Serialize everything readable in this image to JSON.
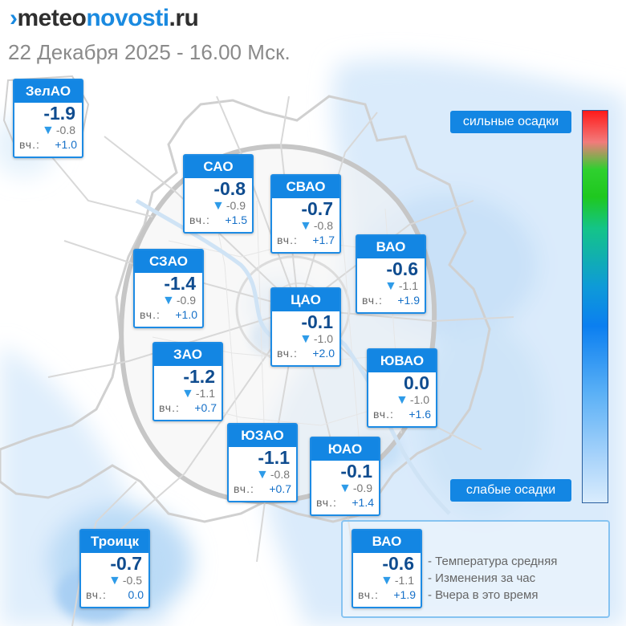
{
  "header": {
    "logo_prefix": "meteo",
    "logo_main": "novosti",
    "logo_suffix": ".ru",
    "datetime": "22 Декабря 2025 - 16.00 Мск."
  },
  "colors": {
    "brand_blue": "#1386e3",
    "temp_text": "#0f4c8f",
    "precip_light": "#cfe6fb",
    "road_gray": "#d4d4d4"
  },
  "districts": [
    {
      "name": "ЗелАО",
      "temp": "-1.9",
      "change": "-0.8",
      "yesterday_label": "вч.:",
      "yesterday": "+1.0"
    },
    {
      "name": "САО",
      "temp": "-0.8",
      "change": "-0.9",
      "yesterday_label": "вч.:",
      "yesterday": "+1.5"
    },
    {
      "name": "СВАО",
      "temp": "-0.7",
      "change": "-0.8",
      "yesterday_label": "вч.:",
      "yesterday": "+1.7"
    },
    {
      "name": "ВАО",
      "temp": "-0.6",
      "change": "-1.1",
      "yesterday_label": "вч.:",
      "yesterday": "+1.9"
    },
    {
      "name": "СЗАО",
      "temp": "-1.4",
      "change": "-0.9",
      "yesterday_label": "вч.:",
      "yesterday": "+1.0"
    },
    {
      "name": "ЦАО",
      "temp": "-0.1",
      "change": "-1.0",
      "yesterday_label": "вч.:",
      "yesterday": "+2.0"
    },
    {
      "name": "ЗАО",
      "temp": "-1.2",
      "change": "-1.1",
      "yesterday_label": "вч.:",
      "yesterday": "+0.7"
    },
    {
      "name": "ЮВАО",
      "temp": "0.0",
      "change": "-1.0",
      "yesterday_label": "вч.:",
      "yesterday": "+1.6"
    },
    {
      "name": "ЮЗАО",
      "temp": "-1.1",
      "change": "-0.8",
      "yesterday_label": "вч.:",
      "yesterday": "+0.7"
    },
    {
      "name": "ЮАО",
      "temp": "-0.1",
      "change": "-0.9",
      "yesterday_label": "вч.:",
      "yesterday": "+1.4"
    },
    {
      "name": "Троицк",
      "temp": "-0.7",
      "change": "-0.5",
      "yesterday_label": "вч.:",
      "yesterday": "0.0"
    }
  ],
  "precip_legend": {
    "high_label": "сильные осадки",
    "low_label": "слабые осадки"
  },
  "explanation": {
    "sample": {
      "name": "ВАО",
      "temp": "-0.6",
      "change": "-1.1",
      "yesterday_label": "вч.:",
      "yesterday": "+1.9"
    },
    "lines": [
      "- Температура средняя",
      "- Изменения за час",
      "- Вчера в это время"
    ]
  }
}
